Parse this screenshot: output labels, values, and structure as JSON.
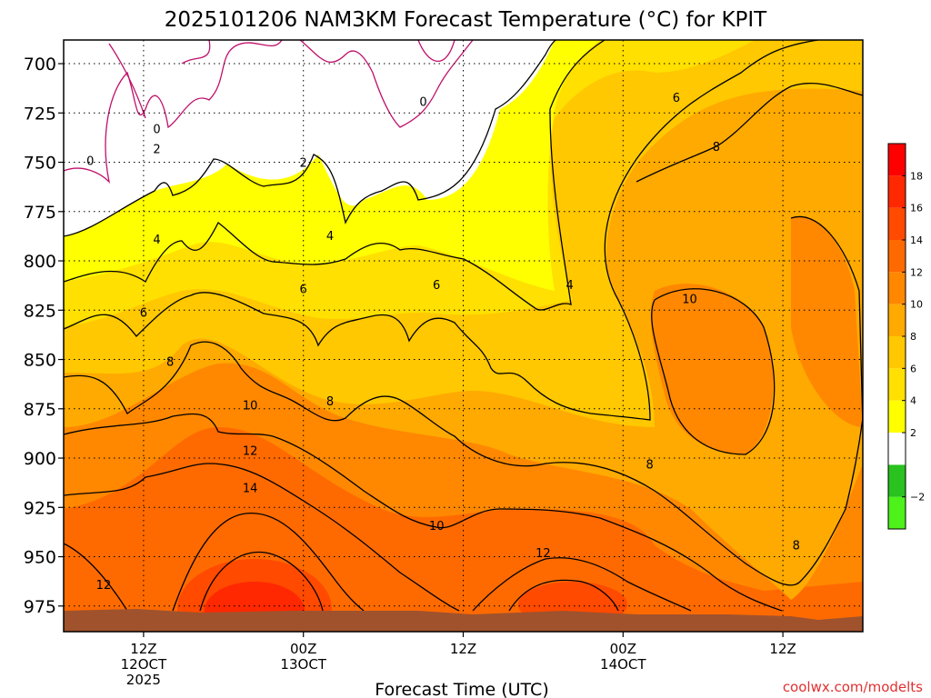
{
  "chart_data": {
    "type": "heatmap",
    "title": "2025101206 NAM3KM Forecast Temperature (°C) for KPIT",
    "xlabel": "Forecast Time (UTC)",
    "ylabel": "",
    "credit": "coolwx.com/modelts",
    "y_axis": {
      "reversed": true,
      "ticks": [
        700,
        725,
        750,
        775,
        800,
        825,
        850,
        875,
        900,
        925,
        950,
        975
      ],
      "ylim": [
        688,
        988
      ]
    },
    "x_axis": {
      "ticks": [
        {
          "time": "2025-10-12 12Z",
          "lines": [
            "12Z",
            "12OCT",
            "2025"
          ]
        },
        {
          "time": "2025-10-13 00Z",
          "lines": [
            "00Z",
            "13OCT"
          ]
        },
        {
          "time": "2025-10-13 12Z",
          "lines": [
            "12Z"
          ]
        },
        {
          "time": "2025-10-14 00Z",
          "lines": [
            "00Z",
            "14OCT"
          ]
        },
        {
          "time": "2025-10-14 12Z",
          "lines": [
            "12Z"
          ]
        }
      ],
      "xlim": [
        "2025-10-12 06Z",
        "2025-10-14 18Z"
      ]
    },
    "grid": true,
    "colorbar": {
      "position": "right",
      "bins": [
        {
          "from": -4,
          "to": -2,
          "color": "#4cf21a"
        },
        {
          "from": -2,
          "to": 0,
          "color": "#29c21f"
        },
        {
          "from": 0,
          "to": 2,
          "color": "#ffffff"
        },
        {
          "from": 2,
          "to": 4,
          "color": "#ffff00"
        },
        {
          "from": 4,
          "to": 6,
          "color": "#ffe000"
        },
        {
          "from": 6,
          "to": 8,
          "color": "#ffc800"
        },
        {
          "from": 8,
          "to": 10,
          "color": "#ffaa00"
        },
        {
          "from": 10,
          "to": 12,
          "color": "#ff8800"
        },
        {
          "from": 12,
          "to": 14,
          "color": "#ff6a00"
        },
        {
          "from": 14,
          "to": 16,
          "color": "#ff4a00"
        },
        {
          "from": 16,
          "to": 18,
          "color": "#ff2800"
        },
        {
          "from": 18,
          "to": 20,
          "color": "#ff0000"
        }
      ],
      "tick_labels": [
        {
          "value": -2,
          "label": "−2"
        },
        {
          "value": 2,
          "label": "2"
        },
        {
          "value": 4,
          "label": "4"
        },
        {
          "value": 6,
          "label": "6"
        },
        {
          "value": 8,
          "label": "8"
        },
        {
          "value": 10,
          "label": "10"
        },
        {
          "value": 12,
          "label": "12"
        },
        {
          "value": 14,
          "label": "14"
        },
        {
          "value": 16,
          "label": "16"
        },
        {
          "value": 18,
          "label": "18"
        }
      ]
    },
    "contour_levels": [
      0,
      2,
      4,
      6,
      8,
      10,
      12,
      14
    ],
    "contour_color_freezing": "#c0106b",
    "contour_color": "#000000",
    "ground_color": "#a0522d",
    "contour_labels": [
      {
        "value": "0",
        "time": "2025-10-12 13Z",
        "p": 733
      },
      {
        "value": "0",
        "time": "2025-10-12 08Z",
        "p": 749
      },
      {
        "value": "0",
        "time": "2025-10-13 09Z",
        "p": 719
      },
      {
        "value": "2",
        "time": "2025-10-12 13Z",
        "p": 743
      },
      {
        "value": "2",
        "time": "2025-10-13 00Z",
        "p": 750
      },
      {
        "value": "4",
        "time": "2025-10-12 13Z",
        "p": 789
      },
      {
        "value": "4",
        "time": "2025-10-13 02Z",
        "p": 787
      },
      {
        "value": "4",
        "time": "2025-10-13 20Z",
        "p": 812
      },
      {
        "value": "6",
        "time": "2025-10-12 12Z",
        "p": 826
      },
      {
        "value": "6",
        "time": "2025-10-13 00Z",
        "p": 814
      },
      {
        "value": "6",
        "time": "2025-10-13 10Z",
        "p": 812
      },
      {
        "value": "6",
        "time": "2025-10-14 04Z",
        "p": 717
      },
      {
        "value": "8",
        "time": "2025-10-12 14Z",
        "p": 851
      },
      {
        "value": "8",
        "time": "2025-10-13 02Z",
        "p": 871
      },
      {
        "value": "8",
        "time": "2025-10-14 02Z",
        "p": 903
      },
      {
        "value": "8",
        "time": "2025-10-14 07Z",
        "p": 742
      },
      {
        "value": "8",
        "time": "2025-10-14 13Z",
        "p": 944
      },
      {
        "value": "10",
        "time": "2025-10-12 20Z",
        "p": 873
      },
      {
        "value": "10",
        "time": "2025-10-13 10Z",
        "p": 934
      },
      {
        "value": "10",
        "time": "2025-10-14 05Z",
        "p": 819
      },
      {
        "value": "12",
        "time": "2025-10-12 20Z",
        "p": 896
      },
      {
        "value": "12",
        "time": "2025-10-12 09Z",
        "p": 964
      },
      {
        "value": "12",
        "time": "2025-10-13 18Z",
        "p": 948
      },
      {
        "value": "14",
        "time": "2025-10-12 20Z",
        "p": 915
      }
    ]
  }
}
